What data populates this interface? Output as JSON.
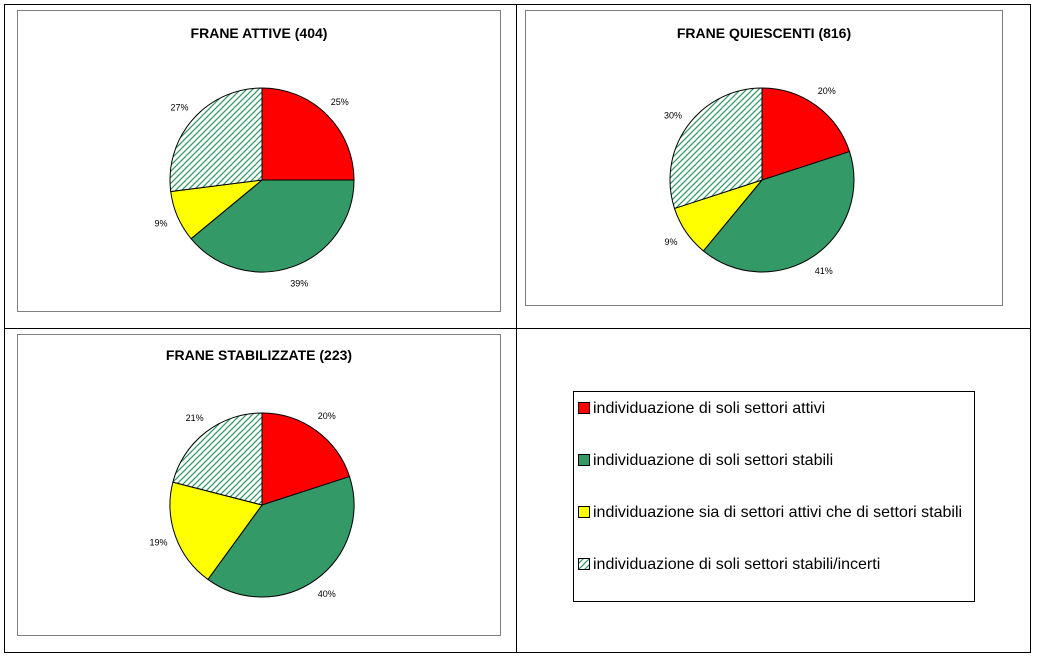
{
  "chart_data": [
    {
      "type": "pie",
      "title": "FRANE ATTIVE (404)",
      "categories": [
        "individuazione di soli settori attivi",
        "individuazione di soli settori stabili",
        "individuazione sia di settori attivi che di settori stabili",
        "individuazione di soli settori stabili/incerti"
      ],
      "values": [
        25,
        39,
        9,
        27
      ],
      "labels": [
        "25%",
        "39%",
        "9%",
        "27%"
      ]
    },
    {
      "type": "pie",
      "title": "FRANE QUIESCENTI (816)",
      "categories": [
        "individuazione di soli settori attivi",
        "individuazione di soli settori stabili",
        "individuazione sia di settori attivi che di settori stabili",
        "individuazione di soli settori stabili/incerti"
      ],
      "values": [
        20,
        41,
        9,
        30
      ],
      "labels": [
        "20%",
        "41%",
        "9%",
        "30%"
      ]
    },
    {
      "type": "pie",
      "title": "FRANE STABILIZZATE (223)",
      "categories": [
        "individuazione di soli settori attivi",
        "individuazione di soli settori stabili",
        "individuazione sia di settori attivi che di settori stabili",
        "individuazione di soli settori stabili/incerti"
      ],
      "values": [
        20,
        40,
        19,
        21
      ],
      "labels": [
        "20%",
        "40%",
        "19%",
        "21%"
      ]
    }
  ],
  "legend": {
    "items": [
      {
        "label": "individuazione di soli settori attivi",
        "color": "#ff0000",
        "pattern": "solid"
      },
      {
        "label": "individuazione di soli settori stabili",
        "color": "#339966",
        "pattern": "solid"
      },
      {
        "label": "individuazione sia di settori attivi che di settori stabili",
        "color": "#ffff00",
        "pattern": "solid"
      },
      {
        "label": "individuazione di soli settori stabili/incerti",
        "color": "#339966",
        "pattern": "diagonal-hatch"
      }
    ]
  }
}
